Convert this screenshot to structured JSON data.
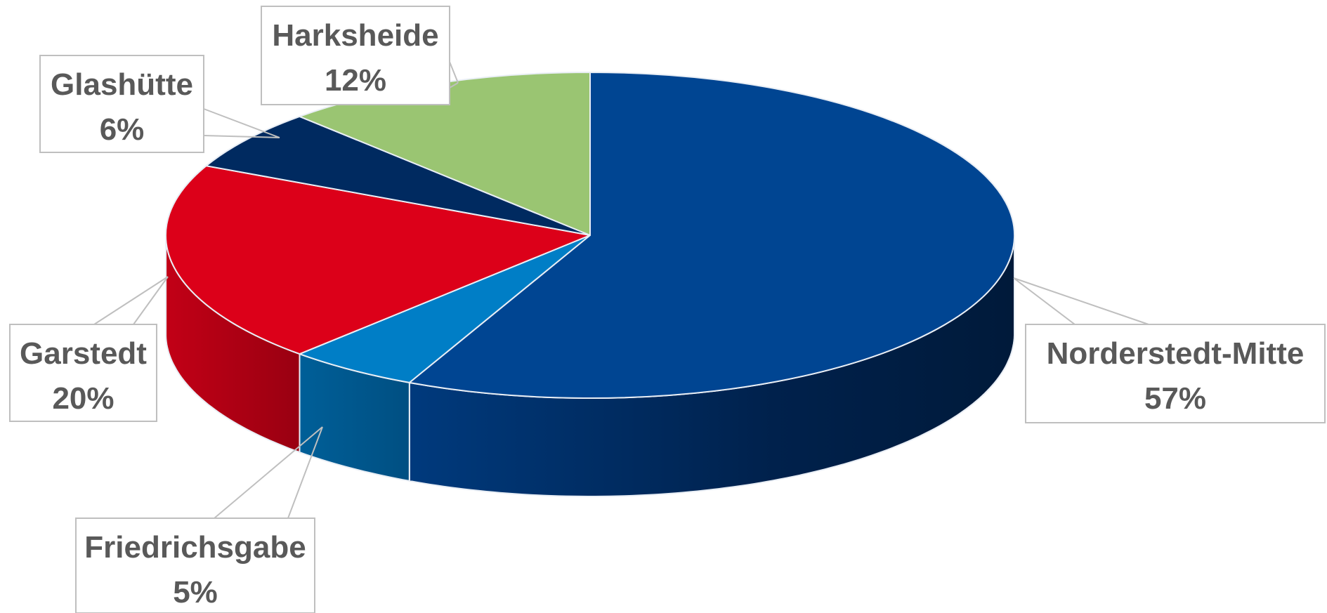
{
  "chart_data": {
    "type": "pie",
    "style": "3d",
    "legend": "none",
    "slices": [
      {
        "name": "Norderstedt-Mitte",
        "value": 57,
        "label": "57%",
        "color": "#004592",
        "side_color": "#00275a"
      },
      {
        "name": "Friedrichsgabe",
        "value": 5,
        "label": "5%",
        "color": "#007ec6",
        "side_color": "#005a92"
      },
      {
        "name": "Garstedt",
        "value": 20,
        "label": "20%",
        "color": "#dc0019",
        "side_color": "#a50013"
      },
      {
        "name": "Glashütte",
        "value": 6,
        "label": "6%",
        "color": "#002a60",
        "side_color": "#001a3d"
      },
      {
        "name": "Harksheide",
        "value": 12,
        "label": "12%",
        "color": "#9ac572",
        "side_color": "#739457"
      }
    ]
  }
}
